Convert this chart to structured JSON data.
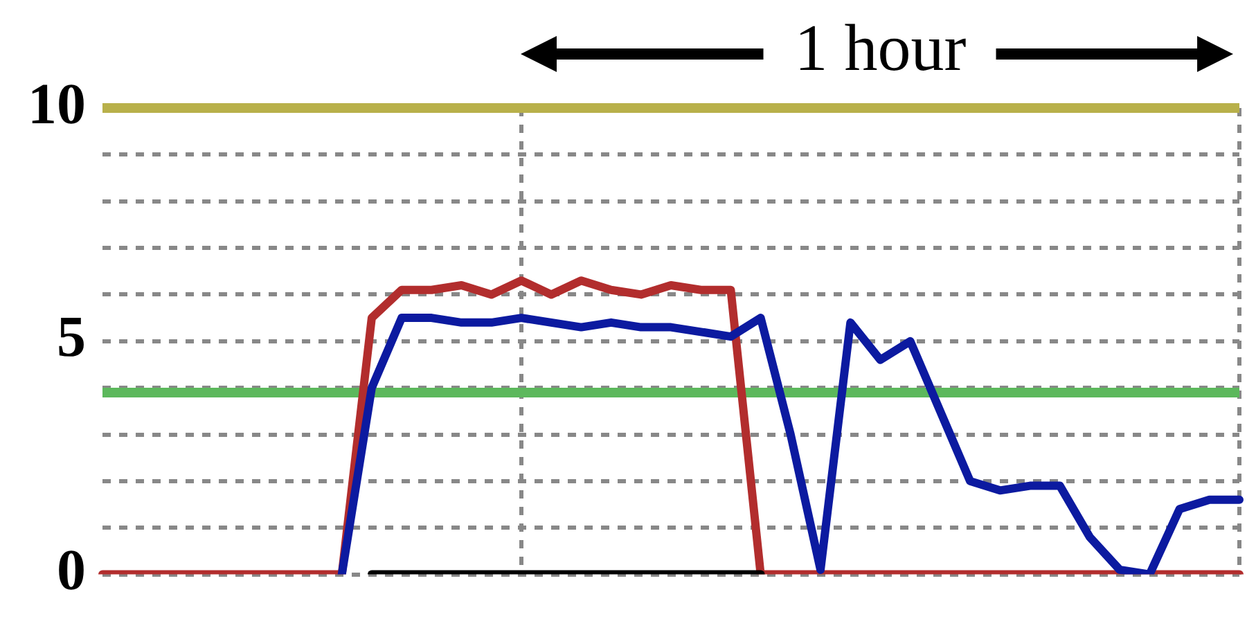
{
  "chart_data": {
    "type": "line",
    "annotations": [
      "1 hour"
    ],
    "categories": [
      null,
      null,
      null,
      null,
      null,
      null,
      null,
      null,
      null,
      null,
      null,
      null,
      null,
      null,
      null,
      null,
      null,
      null,
      null,
      null,
      null,
      null,
      null,
      null,
      null,
      null,
      null,
      null,
      null,
      null,
      null,
      null,
      null,
      null,
      null,
      null,
      null,
      null,
      null
    ],
    "ylim": [
      0,
      10
    ],
    "yticks": [
      0,
      {
        "value": 1,
        "label": null
      },
      {
        "value": 2,
        "label": null
      },
      {
        "value": 3,
        "label": null
      },
      {
        "value": 4,
        "label": null
      },
      5,
      {
        "value": 6,
        "label": null
      },
      {
        "value": 7,
        "label": null
      },
      {
        "value": 8,
        "label": null
      },
      {
        "value": 9,
        "label": null
      },
      10
    ],
    "tick_labels": "y",
    "grid": true,
    "marker": "none",
    "ref_lines": [
      {
        "axis": "y",
        "value": 10,
        "color": "#b8b04a"
      },
      {
        "axis": "y",
        "value": 3.9,
        "color": "#5cb85c"
      }
    ],
    "series": [
      {
        "color": "#000000",
        "values": [
          null,
          null,
          null,
          null,
          null,
          null,
          null,
          null,
          null,
          0,
          0,
          0,
          0,
          0,
          0,
          0,
          0,
          0,
          0,
          0,
          0,
          0,
          0,
          null,
          null,
          null,
          null,
          null,
          null,
          null,
          null,
          null,
          null,
          null,
          null,
          null,
          null,
          null,
          null
        ]
      },
      {
        "color": "#0c1aa0",
        "values": [
          null,
          null,
          null,
          null,
          null,
          null,
          null,
          null,
          0,
          4.0,
          5.5,
          5.5,
          5.4,
          5.4,
          5.5,
          5.4,
          5.3,
          5.4,
          5.3,
          5.3,
          5.2,
          5.1,
          5.5,
          3.0,
          0.1,
          5.4,
          4.6,
          5.0,
          3.5,
          2.0,
          1.8,
          1.9,
          1.9,
          0.8,
          0.1,
          0,
          1.4,
          1.6,
          1.6
        ]
      },
      {
        "color": "#b22d2d",
        "values": [
          0,
          0,
          0,
          0,
          0,
          0,
          0,
          0,
          0,
          5.5,
          6.1,
          6.1,
          6.2,
          6.0,
          6.3,
          6.0,
          6.3,
          6.1,
          6.0,
          6.2,
          6.1,
          6.1,
          0,
          0,
          0,
          0,
          0,
          0,
          0,
          0,
          0,
          0,
          0,
          0,
          0,
          0,
          0,
          0,
          0
        ]
      }
    ]
  }
}
